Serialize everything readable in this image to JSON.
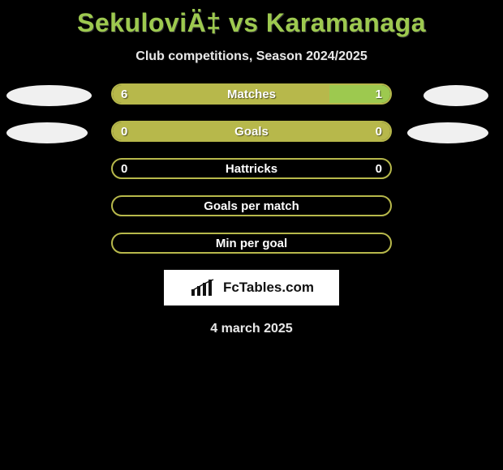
{
  "title": "SekuloviÄ‡ vs Karamanaga",
  "subtitle": "Club competitions, Season 2024/2025",
  "date": "4 march 2025",
  "brand": {
    "name": "FcTables.com"
  },
  "colors": {
    "accent": "#9dc94f",
    "olive": "#b7b84b",
    "white_text": "#ffffff",
    "ellipse": "#f0f0f0",
    "background": "#000000"
  },
  "rows": [
    {
      "type": "split-bar",
      "label": "Matches",
      "left_value": "6",
      "right_value": "1",
      "left_pct": 78,
      "right_pct": 22,
      "left_color": "#b7b84b",
      "right_color": "#9dc94f",
      "border_color": "#b7b84b",
      "ellipse_left_w": 105,
      "ellipse_right_w": 80,
      "show_values": true
    },
    {
      "type": "split-bar",
      "label": "Goals",
      "left_value": "0",
      "right_value": "0",
      "left_pct": 100,
      "right_pct": 0,
      "left_color": "#b7b84b",
      "right_color": "#9dc94f",
      "border_color": "#b7b84b",
      "ellipse_left_w": 100,
      "ellipse_right_w": 100,
      "show_values": true
    },
    {
      "type": "split-bar",
      "label": "Hattricks",
      "left_value": "0",
      "right_value": "0",
      "left_pct": 0,
      "right_pct": 0,
      "left_color": "#b7b84b",
      "right_color": "#9dc94f",
      "border_color": "#b7b84b",
      "ellipse_left_w": 0,
      "ellipse_right_w": 0,
      "show_values": true
    },
    {
      "type": "empty-bar",
      "label": "Goals per match",
      "border_color": "#b7b84b",
      "ellipse_left_w": 0,
      "ellipse_right_w": 0,
      "show_values": false
    },
    {
      "type": "empty-bar",
      "label": "Min per goal",
      "border_color": "#b7b84b",
      "ellipse_left_w": 0,
      "ellipse_right_w": 0,
      "show_values": false
    }
  ]
}
